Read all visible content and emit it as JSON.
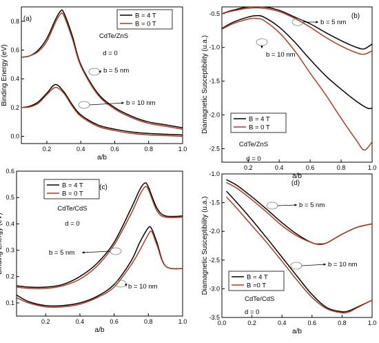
{
  "chart_data": [
    {
      "id": "a",
      "type": "line",
      "panel_label": "(a)",
      "xlabel": "a/b",
      "ylabel": "Binding Energy (eV)",
      "xlim": [
        0.05,
        1.0
      ],
      "ylim": [
        -0.05,
        0.9
      ],
      "xticks": [
        0.2,
        0.4,
        0.6,
        0.8,
        1.0
      ],
      "yticks": [
        0.0,
        0.2,
        0.4,
        0.6,
        0.8
      ],
      "legend": {
        "position": "top-right",
        "entries": [
          "B = 4 T",
          "B = 0 T"
        ]
      },
      "annotations": [
        {
          "text": "CdTe/ZnS"
        },
        {
          "text": "d = 0"
        },
        {
          "text": "b = 5 nm"
        },
        {
          "text": "b = 10 nm"
        }
      ],
      "series": [
        {
          "name": "B = 4 T",
          "color": "#000000",
          "x": [
            0.05,
            0.1,
            0.15,
            0.2,
            0.25,
            0.28,
            0.3,
            0.35,
            0.4,
            0.5,
            0.6,
            0.7,
            0.8,
            0.9,
            1.0
          ],
          "y": [
            0.55,
            0.56,
            0.6,
            0.68,
            0.81,
            0.87,
            0.86,
            0.7,
            0.5,
            0.3,
            0.2,
            0.14,
            0.1,
            0.08,
            0.06
          ]
        },
        {
          "name": "B = 0 T",
          "color": "#b03a20",
          "x": [
            0.05,
            0.1,
            0.15,
            0.2,
            0.25,
            0.28,
            0.3,
            0.35,
            0.4,
            0.5,
            0.6,
            0.7,
            0.8,
            0.9,
            1.0
          ],
          "y": [
            0.55,
            0.56,
            0.59,
            0.66,
            0.79,
            0.85,
            0.84,
            0.68,
            0.49,
            0.29,
            0.19,
            0.13,
            0.09,
            0.07,
            0.05
          ]
        },
        {
          "name": "B = 4 T",
          "color": "#000000",
          "x": [
            0.05,
            0.1,
            0.15,
            0.2,
            0.25,
            0.3,
            0.35,
            0.4,
            0.5,
            0.6,
            0.7,
            0.8,
            0.9,
            1.0
          ],
          "y": [
            0.2,
            0.21,
            0.24,
            0.3,
            0.36,
            0.31,
            0.22,
            0.15,
            0.08,
            0.05,
            0.03,
            0.02,
            0.015,
            0.01
          ]
        },
        {
          "name": "B = 0 T",
          "color": "#b03a20",
          "x": [
            0.05,
            0.1,
            0.15,
            0.2,
            0.25,
            0.3,
            0.35,
            0.4,
            0.5,
            0.6,
            0.7,
            0.8,
            0.9,
            1.0
          ],
          "y": [
            0.2,
            0.205,
            0.23,
            0.29,
            0.34,
            0.3,
            0.21,
            0.14,
            0.07,
            0.04,
            0.02,
            0.01,
            0.005,
            0.0
          ]
        }
      ]
    },
    {
      "id": "b",
      "type": "line",
      "panel_label": "(b)",
      "xlabel": "a/b",
      "ylabel": "Diamagnetic Susceptibility (u.a.)",
      "xlim": [
        0.03,
        1.0
      ],
      "ylim": [
        -2.7,
        -0.4
      ],
      "xticks": [
        0.2,
        0.4,
        0.6,
        0.8,
        1.0
      ],
      "yticks": [
        -0.5,
        -1.0,
        -1.5,
        -2.0,
        -2.5
      ],
      "legend": {
        "position": "bottom-left",
        "entries": [
          "B = 4 T",
          "B = 0 T"
        ]
      },
      "annotations": [
        {
          "text": "CdTe/ZnS"
        },
        {
          "text": "d = 0"
        },
        {
          "text": "b = 5 nm"
        },
        {
          "text": "b = 10 nm"
        }
      ],
      "series": [
        {
          "name": "B = 4 T",
          "color": "#000000",
          "x": [
            0.03,
            0.1,
            0.2,
            0.3,
            0.4,
            0.5,
            0.6,
            0.7,
            0.8,
            0.9,
            0.95,
            1.0
          ],
          "y": [
            -0.5,
            -0.45,
            -0.4,
            -0.4,
            -0.45,
            -0.55,
            -0.65,
            -0.78,
            -0.9,
            -1.0,
            -1.02,
            -0.95
          ]
        },
        {
          "name": "B = 0 T",
          "color": "#b03a20",
          "x": [
            0.03,
            0.1,
            0.2,
            0.3,
            0.4,
            0.5,
            0.6,
            0.7,
            0.8,
            0.9,
            0.95,
            1.0
          ],
          "y": [
            -0.5,
            -0.46,
            -0.42,
            -0.42,
            -0.47,
            -0.57,
            -0.7,
            -0.85,
            -0.98,
            -1.08,
            -1.1,
            -1.05
          ]
        },
        {
          "name": "B = 4 T",
          "color": "#000000",
          "x": [
            0.03,
            0.1,
            0.2,
            0.25,
            0.3,
            0.4,
            0.5,
            0.6,
            0.7,
            0.8,
            0.9,
            0.97,
            1.0
          ],
          "y": [
            -0.72,
            -0.63,
            -0.55,
            -0.53,
            -0.55,
            -0.7,
            -0.92,
            -1.18,
            -1.42,
            -1.62,
            -1.8,
            -1.9,
            -1.9
          ]
        },
        {
          "name": "B = 0 T",
          "color": "#b03a20",
          "x": [
            0.03,
            0.1,
            0.2,
            0.25,
            0.3,
            0.4,
            0.5,
            0.6,
            0.7,
            0.8,
            0.9,
            0.95,
            1.0
          ],
          "y": [
            -0.73,
            -0.65,
            -0.58,
            -0.57,
            -0.6,
            -0.78,
            -1.05,
            -1.38,
            -1.7,
            -2.05,
            -2.38,
            -2.52,
            -2.4
          ]
        }
      ]
    },
    {
      "id": "c",
      "type": "line",
      "panel_label": "(c)",
      "xlabel": "a/b",
      "ylabel": "Binding Energy (eV)",
      "xlim": [
        0.03,
        1.0
      ],
      "ylim": [
        0.05,
        0.6
      ],
      "xticks": [
        0.2,
        0.4,
        0.6,
        0.8,
        1.0
      ],
      "yticks": [
        0.1,
        0.2,
        0.3,
        0.4,
        0.5,
        0.6
      ],
      "legend": {
        "position": "top-left",
        "entries": [
          "B = 4 T",
          "B = 0 T"
        ]
      },
      "annotations": [
        {
          "text": "CdTe/CdS"
        },
        {
          "text": "d = 0"
        },
        {
          "text": "b = 5 nm"
        },
        {
          "text": "b = 10 nm"
        }
      ],
      "series": [
        {
          "name": "B = 4 T",
          "color": "#000000",
          "x": [
            0.03,
            0.1,
            0.2,
            0.3,
            0.4,
            0.5,
            0.6,
            0.7,
            0.75,
            0.78,
            0.8,
            0.85,
            0.9,
            1.0
          ],
          "y": [
            0.165,
            0.16,
            0.16,
            0.17,
            0.2,
            0.25,
            0.33,
            0.46,
            0.53,
            0.555,
            0.54,
            0.46,
            0.43,
            0.43
          ]
        },
        {
          "name": "B = 0 T",
          "color": "#b03a20",
          "x": [
            0.03,
            0.1,
            0.2,
            0.3,
            0.4,
            0.5,
            0.6,
            0.7,
            0.75,
            0.78,
            0.8,
            0.85,
            0.9,
            1.0
          ],
          "y": [
            0.16,
            0.155,
            0.155,
            0.165,
            0.19,
            0.24,
            0.32,
            0.44,
            0.51,
            0.54,
            0.53,
            0.45,
            0.425,
            0.425
          ]
        },
        {
          "name": "B = 4 T",
          "color": "#000000",
          "x": [
            0.03,
            0.1,
            0.2,
            0.3,
            0.4,
            0.5,
            0.6,
            0.7,
            0.75,
            0.8,
            0.82,
            0.85,
            0.9,
            1.0
          ],
          "y": [
            0.13,
            0.105,
            0.09,
            0.09,
            0.1,
            0.125,
            0.17,
            0.26,
            0.33,
            0.385,
            0.38,
            0.33,
            0.24,
            0.23
          ]
        },
        {
          "name": "B = 0 T",
          "color": "#b03a20",
          "x": [
            0.03,
            0.1,
            0.2,
            0.3,
            0.4,
            0.5,
            0.6,
            0.7,
            0.75,
            0.8,
            0.82,
            0.85,
            0.9,
            1.0
          ],
          "y": [
            0.12,
            0.1,
            0.085,
            0.085,
            0.095,
            0.12,
            0.16,
            0.245,
            0.3,
            0.36,
            0.37,
            0.32,
            0.24,
            0.23
          ]
        }
      ]
    },
    {
      "id": "d",
      "type": "line",
      "panel_label": "(d)",
      "xlabel": "a/b",
      "ylabel": "Diamagnetic Susceptibility (u.a.)",
      "xlim": [
        0.0,
        1.0
      ],
      "ylim": [
        -3.5,
        -1.0
      ],
      "xticks": [
        0.0,
        0.2,
        0.4,
        0.6,
        0.8,
        1.0
      ],
      "yticks": [
        -1.0,
        -1.5,
        -2.0,
        -2.5,
        -3.0,
        -3.5
      ],
      "legend": {
        "position": "bottom-left",
        "entries": [
          "B = 4 T",
          "B =0 T"
        ]
      },
      "annotations": [
        {
          "text": "CdTe/CdS"
        },
        {
          "text": "d = 0"
        },
        {
          "text": "b = 5 nm"
        },
        {
          "text": "b = 10 nm"
        }
      ],
      "series": [
        {
          "name": "B = 4 T",
          "color": "#000000",
          "x": [
            0.03,
            0.1,
            0.2,
            0.3,
            0.4,
            0.5,
            0.6,
            0.65,
            0.7,
            0.8,
            0.9,
            1.0
          ],
          "y": [
            -1.1,
            -1.2,
            -1.4,
            -1.62,
            -1.85,
            -2.05,
            -2.2,
            -2.22,
            -2.2,
            -2.05,
            -1.93,
            -1.87
          ]
        },
        {
          "name": "B =0 T",
          "color": "#b03a20",
          "x": [
            0.03,
            0.1,
            0.2,
            0.3,
            0.4,
            0.5,
            0.6,
            0.65,
            0.7,
            0.8,
            0.9,
            1.0
          ],
          "y": [
            -1.15,
            -1.25,
            -1.45,
            -1.67,
            -1.9,
            -2.08,
            -2.2,
            -2.23,
            -2.2,
            -2.05,
            -1.93,
            -1.87
          ]
        },
        {
          "name": "B = 4 T",
          "color": "#000000",
          "x": [
            0.03,
            0.1,
            0.2,
            0.3,
            0.4,
            0.5,
            0.6,
            0.7,
            0.8,
            0.85,
            0.9,
            1.0
          ],
          "y": [
            -1.3,
            -1.5,
            -1.8,
            -2.12,
            -2.45,
            -2.78,
            -3.1,
            -3.33,
            -3.4,
            -3.38,
            -3.32,
            -3.2
          ]
        },
        {
          "name": "B =0 T",
          "color": "#b03a20",
          "x": [
            0.03,
            0.1,
            0.2,
            0.3,
            0.4,
            0.5,
            0.6,
            0.7,
            0.8,
            0.85,
            0.9,
            1.0
          ],
          "y": [
            -1.4,
            -1.6,
            -1.9,
            -2.2,
            -2.52,
            -2.85,
            -3.15,
            -3.35,
            -3.42,
            -3.4,
            -3.33,
            -3.2
          ]
        }
      ]
    }
  ]
}
